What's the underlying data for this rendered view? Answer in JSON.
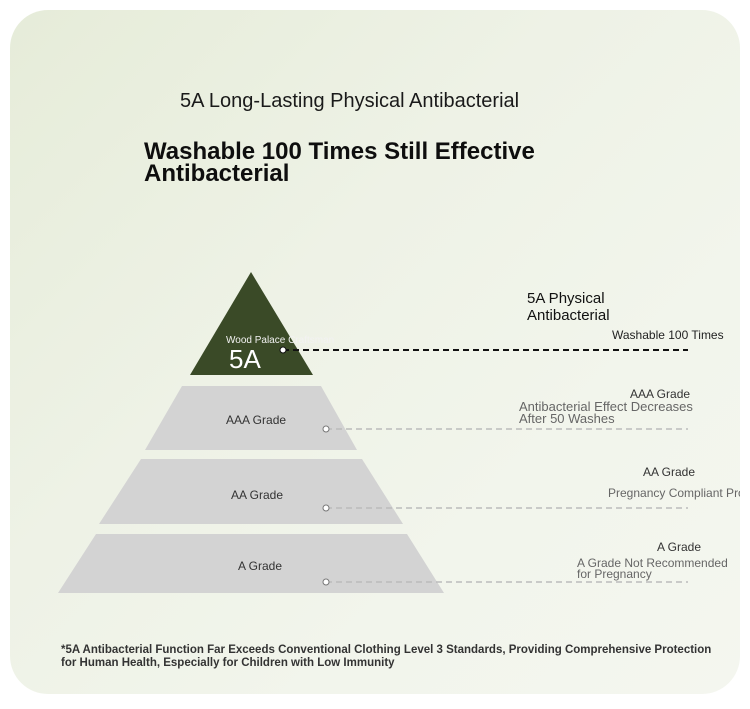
{
  "subtitle": "5A Long-Lasting Physical Antibacterial",
  "headline": {
    "line1": "Washable 100 Times Still Effective",
    "line2": "Antibacterial"
  },
  "pyramid": {
    "top": {
      "maker": "Wood Palace Craftsman",
      "grade": "5A"
    },
    "levels": [
      "AAA Grade",
      "AA Grade",
      "A Grade"
    ]
  },
  "callouts": {
    "five_a": {
      "title_line1": "5A Physical",
      "title_line2": "Antibacterial",
      "detail": "Washable 100 Times"
    },
    "aaa": {
      "grade": "AAA Grade",
      "desc_line1": "Antibacterial Effect Decreases",
      "desc_line2": "After 50 Washes"
    },
    "aa": {
      "grade": "AA Grade",
      "desc": "Pregnancy Compliant Products"
    },
    "a": {
      "grade": "A Grade",
      "desc_line1": "A Grade Not Recommended",
      "desc_line2": "for Pregnancy"
    }
  },
  "footnote": {
    "line1": "*5A Antibacterial Function Far Exceeds Conventional Clothing Level 3 Standards, Providing Comprehensive Protection",
    "line2": "for Human Health, Especially for Children with Low Immunity"
  },
  "colors": {
    "top": "#3a4a27",
    "tier": "#d3d3d3",
    "background": "#eef2e6"
  }
}
